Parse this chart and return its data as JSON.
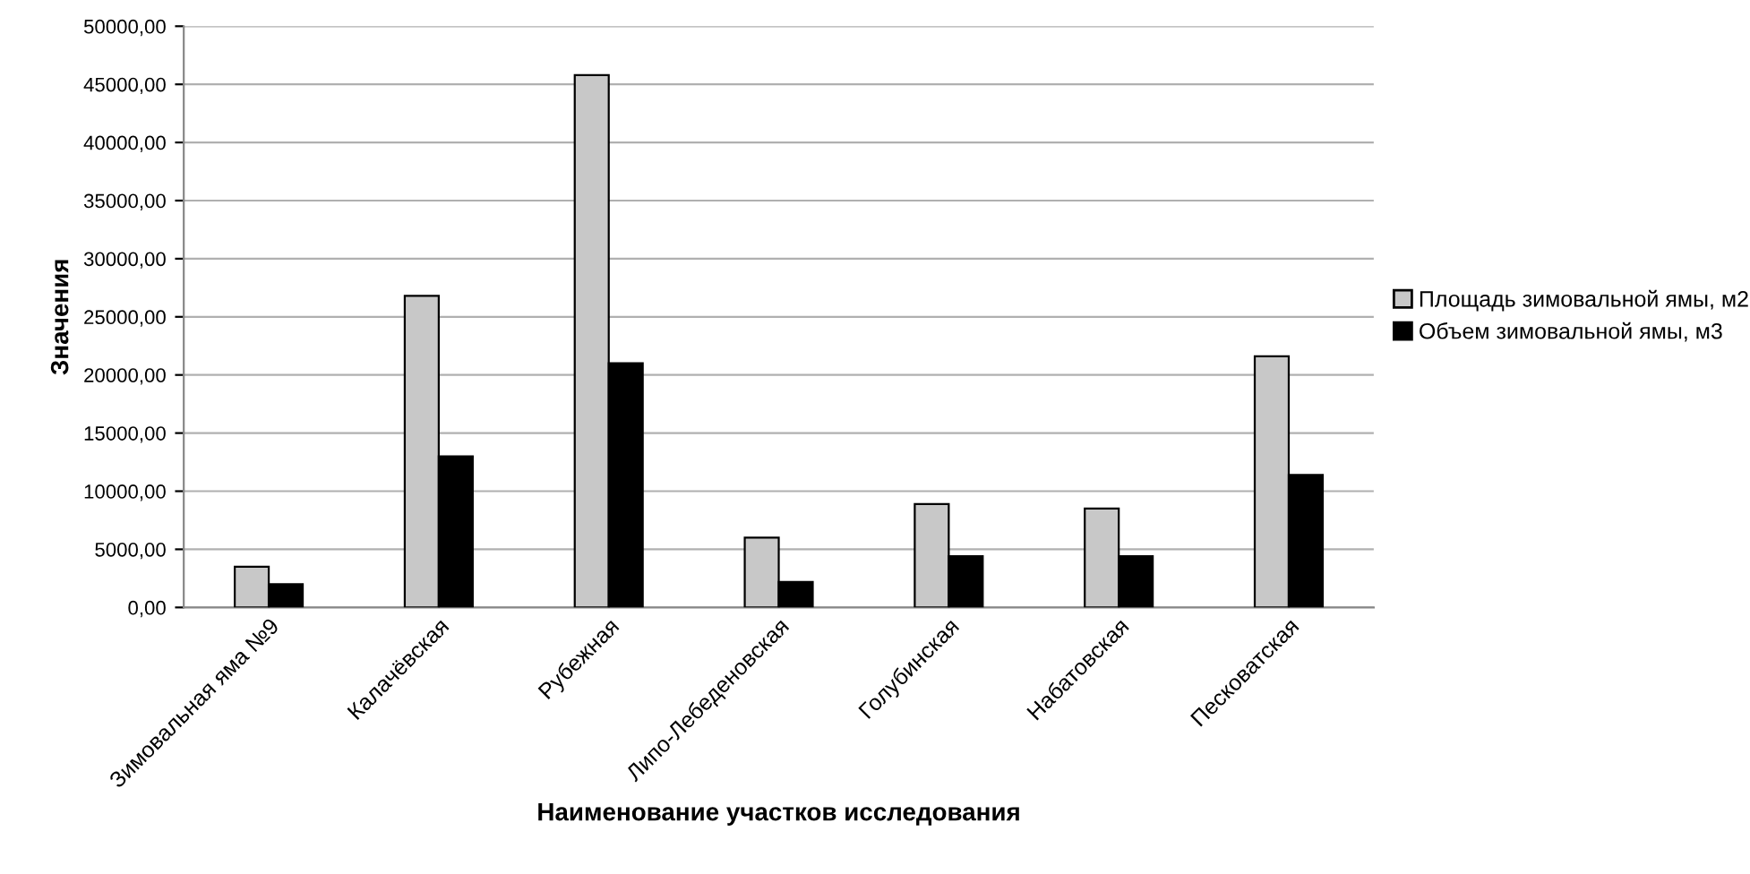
{
  "chart_data": {
    "type": "bar",
    "xlabel": "Наименование участков исследования",
    "ylabel": "Значения",
    "categories": [
      "Зимовальная яма №9",
      "Калачёвская",
      "Рубежная",
      "Липо-Лебеденовская",
      "Голубинская",
      "Набатовская",
      "Песковатская"
    ],
    "series": [
      {
        "name": "Площадь зимовальной ямы, м2",
        "color": "#c8c8c8",
        "values": [
          3500,
          26800,
          45800,
          6000,
          8900,
          8500,
          21600
        ]
      },
      {
        "name": "Объем зимовальной ямы, м3",
        "color": "#000000",
        "values": [
          2000,
          13000,
          21000,
          2200,
          4400,
          4400,
          11400
        ]
      }
    ],
    "ylim": [
      0,
      50000
    ],
    "yticks": [
      {
        "value": 0,
        "label": "0,00"
      },
      {
        "value": 5000,
        "label": "5000,00"
      },
      {
        "value": 10000,
        "label": "10000,00"
      },
      {
        "value": 15000,
        "label": "15000,00"
      },
      {
        "value": 20000,
        "label": "20000,00"
      },
      {
        "value": 25000,
        "label": "25000,00"
      },
      {
        "value": 30000,
        "label": "30000,00"
      },
      {
        "value": 35000,
        "label": "35000,00"
      },
      {
        "value": 40000,
        "label": "40000,00"
      },
      {
        "value": 45000,
        "label": "45000,00"
      },
      {
        "value": 50000,
        "label": "50000,00"
      }
    ],
    "grid": "y",
    "legend": "right"
  }
}
